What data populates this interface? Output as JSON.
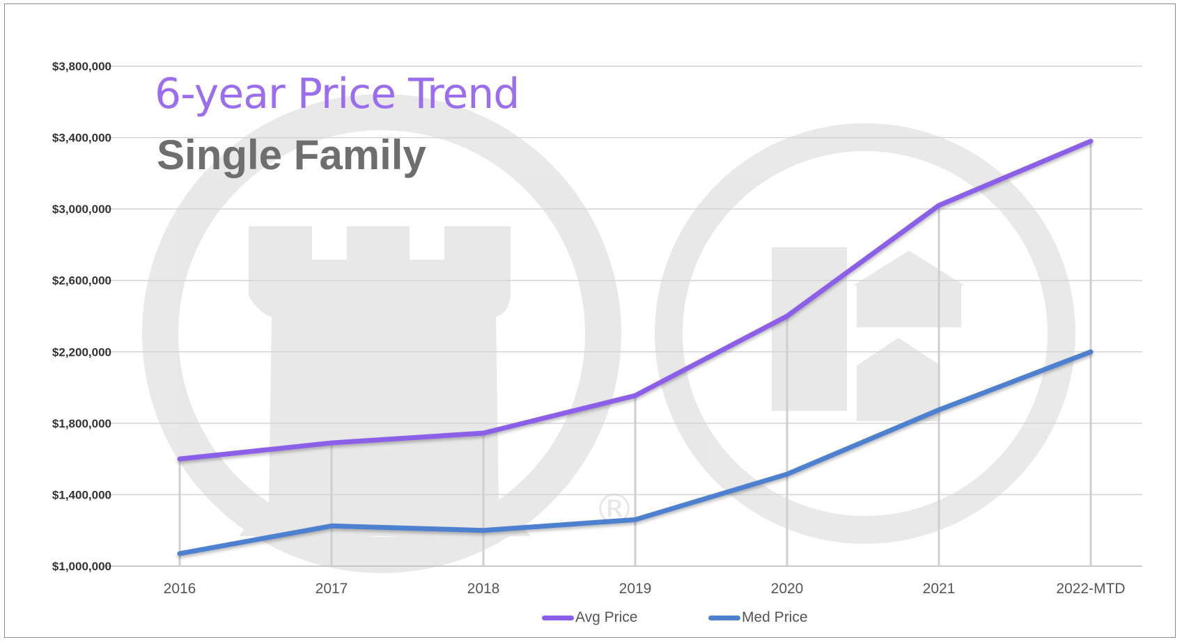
{
  "title": "6-year Price Trend",
  "subtitle": "Single Family",
  "chart_data": {
    "type": "line",
    "categories": [
      "2016",
      "2017",
      "2018",
      "2019",
      "2020",
      "2021",
      "2022-MTD"
    ],
    "series": [
      {
        "name": "Avg Price",
        "color": "#8b5ee8",
        "values": [
          1600000,
          1690000,
          1745000,
          1955000,
          2400000,
          3020000,
          3380000
        ]
      },
      {
        "name": "Med Price",
        "color": "#4d80cf",
        "values": [
          1070000,
          1225000,
          1200000,
          1260000,
          1515000,
          1875000,
          2200000
        ]
      }
    ],
    "ylim": [
      1000000,
      3800000
    ],
    "yticks": [
      1000000,
      1400000,
      1800000,
      2200000,
      2600000,
      3000000,
      3400000,
      3800000
    ],
    "ytick_labels": [
      "$1,000,000",
      "$1,400,000",
      "$1,800,000",
      "$2,200,000",
      "$2,600,000",
      "$3,000,000",
      "$3,400,000",
      "$3,800,000"
    ],
    "grid": true,
    "legend_position": "bottom"
  }
}
